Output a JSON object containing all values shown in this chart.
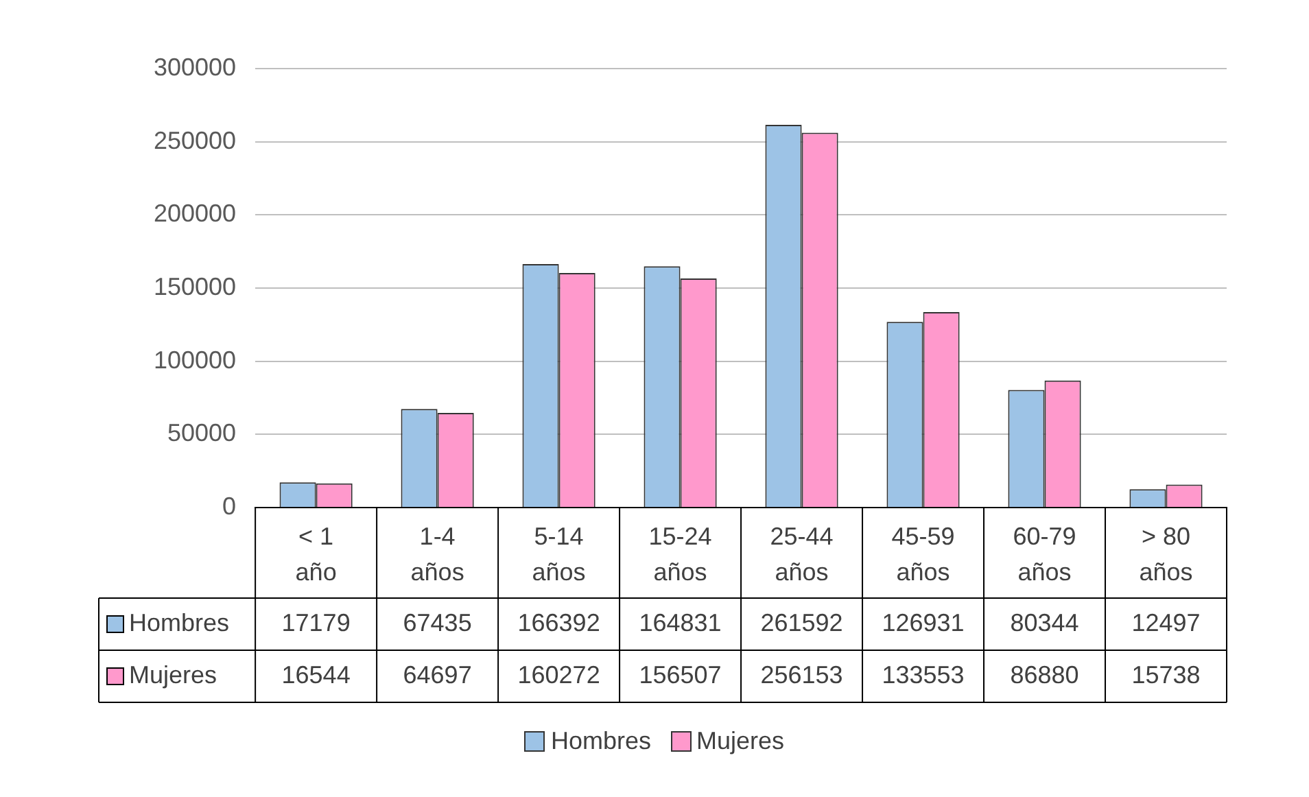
{
  "chart_data": {
    "type": "bar",
    "categories": [
      "< 1 año",
      "1-4 años",
      "5-14 años",
      "15-24 años",
      "25-44 años",
      "45-59 años",
      "60-79 años",
      "> 80 años"
    ],
    "series": [
      {
        "name": "Hombres",
        "color": "#9dc3e6",
        "values": [
          17179,
          67435,
          166392,
          164831,
          261592,
          126931,
          80344,
          12497
        ]
      },
      {
        "name": "Mujeres",
        "color": "#ff99cc",
        "values": [
          16544,
          64697,
          160272,
          156507,
          256153,
          133553,
          86880,
          15738
        ]
      }
    ],
    "ylim": [
      0,
      300000
    ],
    "yticks": [
      0,
      50000,
      100000,
      150000,
      200000,
      250000,
      300000
    ],
    "grid": "y",
    "legend": "bottom",
    "data_labels": true
  }
}
